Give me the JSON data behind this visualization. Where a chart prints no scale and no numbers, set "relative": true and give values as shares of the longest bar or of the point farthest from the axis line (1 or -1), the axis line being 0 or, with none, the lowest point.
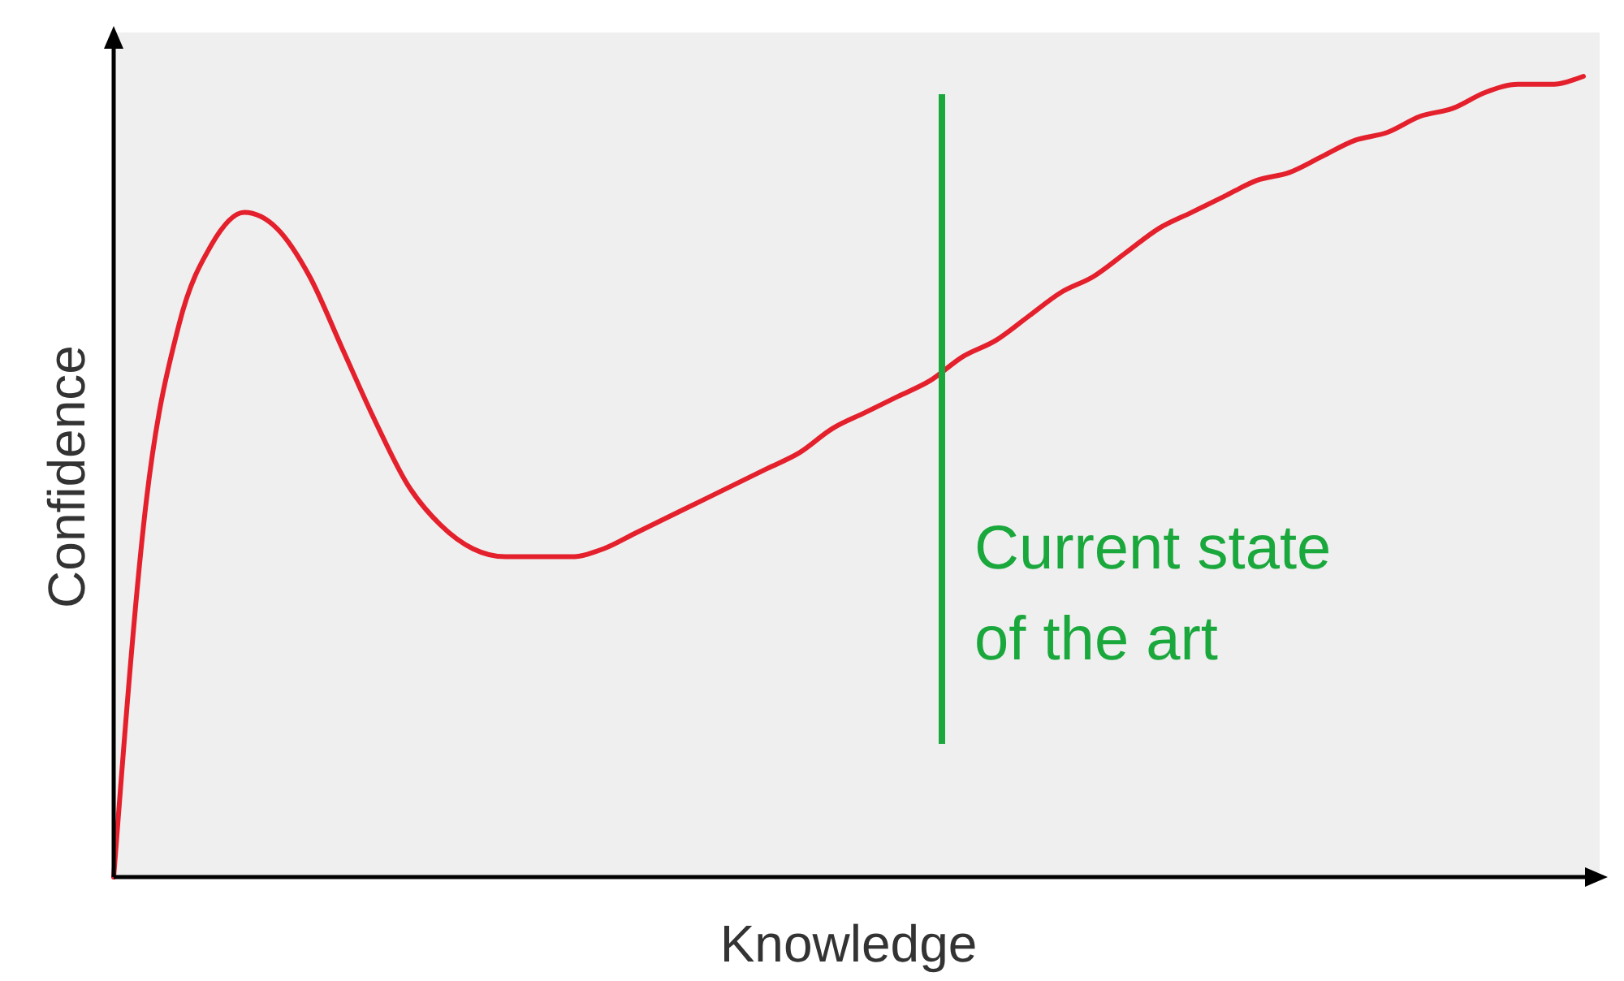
{
  "chart_data": {
    "type": "line",
    "xlabel": "Knowledge",
    "ylabel": "Confidence",
    "relative": true,
    "categories": [
      null,
      null,
      null,
      null,
      null,
      null,
      null,
      null,
      null,
      null,
      null,
      null,
      null,
      null,
      null,
      null,
      null,
      null,
      null,
      null,
      null,
      null,
      null,
      null,
      null,
      null,
      null,
      null,
      null,
      null,
      null,
      null,
      null,
      null,
      null,
      null,
      null,
      null,
      null,
      null,
      null,
      null,
      null,
      null,
      null,
      null
    ],
    "series": [
      {
        "color": "#e4202c",
        "values": [
          0,
          0.47,
          0.69,
          0.79,
          0.83,
          0.81,
          0.75,
          0.66,
          0.57,
          0.49,
          0.44,
          0.41,
          0.4,
          0.4,
          0.4,
          0.41,
          0.43,
          0.45,
          0.47,
          0.49,
          0.51,
          0.53,
          0.56,
          0.58,
          0.6,
          0.62,
          0.65,
          0.67,
          0.7,
          0.73,
          0.75,
          0.78,
          0.81,
          0.83,
          0.85,
          0.87,
          0.88,
          0.9,
          0.92,
          0.93,
          0.95,
          0.96,
          0.98,
          0.99,
          0.99,
          1
        ]
      }
    ],
    "annotations": [
      "Current state\nof the art"
    ]
  }
}
